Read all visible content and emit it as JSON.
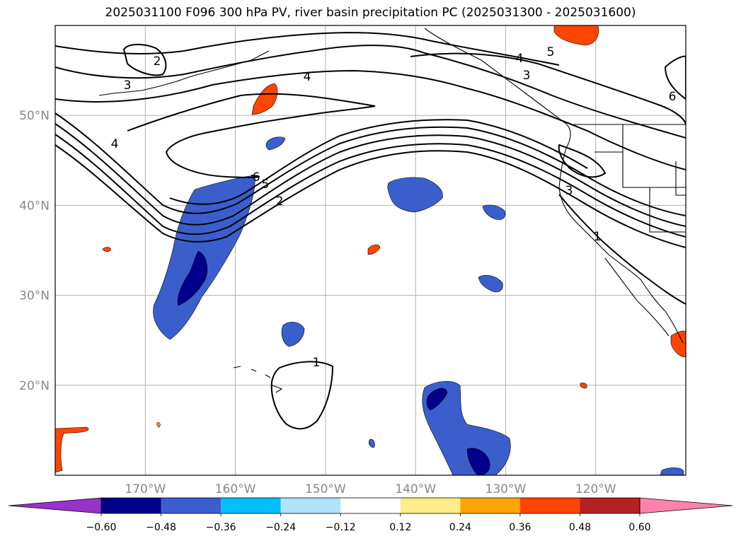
{
  "title": "2025031100 F096 300 hPa PV, river basin precipitation PC (2025031300 - 2025031600)",
  "map": {
    "projection": "PlateCarree",
    "lon_range": [
      -180,
      -110
    ],
    "lat_range": [
      10,
      60
    ],
    "gridlines": true,
    "lat_ticks": [
      {
        "value": 20,
        "label": "20°N"
      },
      {
        "value": 30,
        "label": "30°N"
      },
      {
        "value": 40,
        "label": "40°N"
      },
      {
        "value": 50,
        "label": "50°N"
      }
    ],
    "lon_ticks": [
      {
        "value": -170,
        "label": "170°W"
      },
      {
        "value": -160,
        "label": "160°W"
      },
      {
        "value": -150,
        "label": "150°W"
      },
      {
        "value": -140,
        "label": "140°W"
      },
      {
        "value": -130,
        "label": "130°W"
      },
      {
        "value": -120,
        "label": "120°W"
      }
    ],
    "pv_contour_labels": [
      "2",
      "3",
      "4",
      "4",
      "4",
      "5",
      "6",
      "3",
      "6",
      "5",
      "2",
      "3",
      "1",
      "1"
    ]
  },
  "colorbar": {
    "ticks": [
      "−0.60",
      "−0.48",
      "−0.36",
      "−0.24",
      "−0.12",
      "0.12",
      "0.24",
      "0.36",
      "0.48",
      "0.60"
    ],
    "colors": [
      "#9932cc",
      "#00008b",
      "#3a5fcd",
      "#00bfff",
      "#b0e2ff",
      "#ffffff",
      "#ffec8b",
      "#ffa500",
      "#ff4500",
      "#b22222",
      "#ff82ab"
    ],
    "extend": "both"
  }
}
